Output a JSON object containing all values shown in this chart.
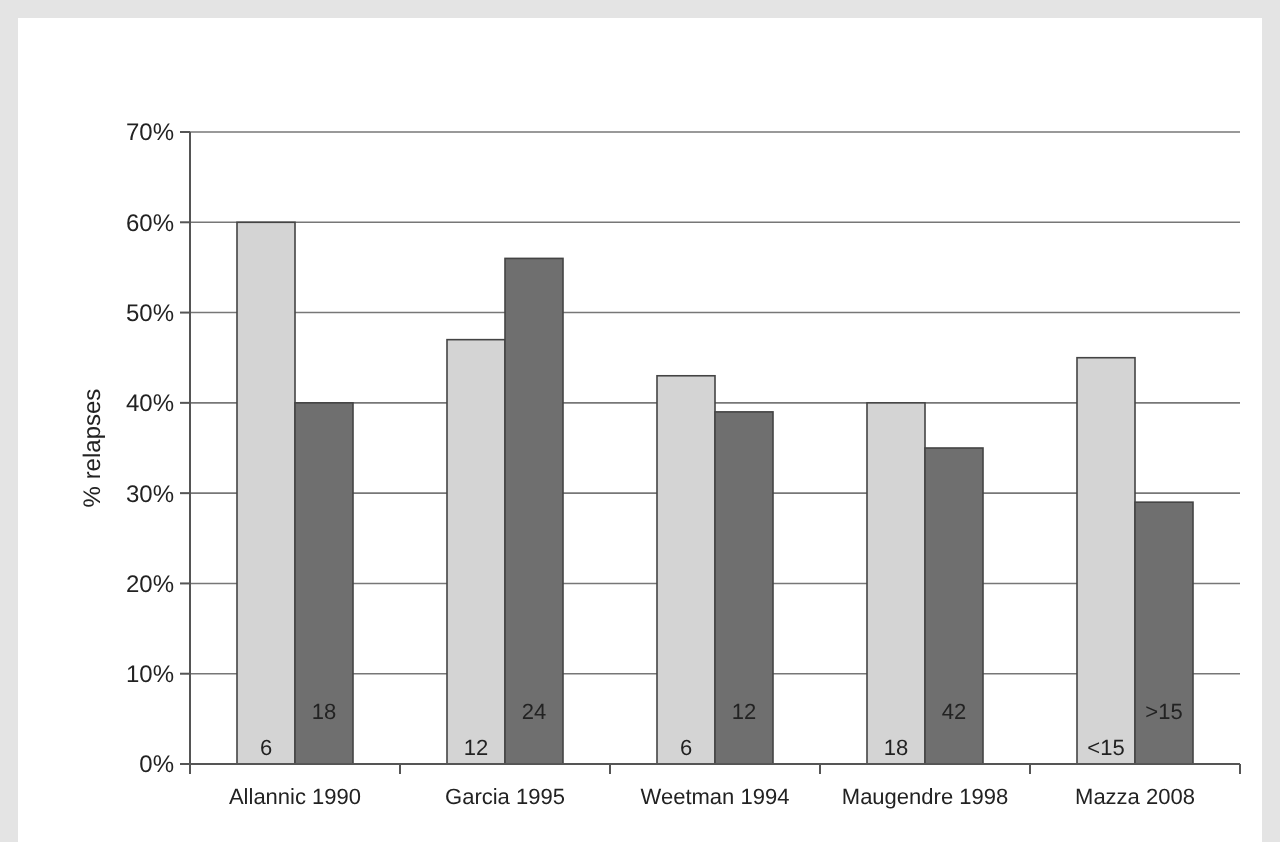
{
  "chart_data": {
    "type": "bar",
    "ylabel": "% relapses",
    "categories": [
      "Allannic 1990",
      "Garcia 1995",
      "Weetman 1994",
      "Maugendre 1998",
      "Mazza 2008"
    ],
    "series": [
      {
        "color": "#d4d4d4",
        "values": [
          60,
          47,
          43,
          40,
          45
        ]
      },
      {
        "color": "#6f6f6f",
        "values": [
          40,
          56,
          39,
          35,
          29
        ]
      }
    ],
    "ylim": [
      0,
      70
    ],
    "yticks": [
      {
        "value": 0,
        "label": "0%"
      },
      {
        "value": 10,
        "label": "10%"
      },
      {
        "value": 20,
        "label": "20%"
      },
      {
        "value": 30,
        "label": "30%"
      },
      {
        "value": 40,
        "label": "40%"
      },
      {
        "value": 50,
        "label": "50%"
      },
      {
        "value": 60,
        "label": "60%"
      },
      {
        "value": 70,
        "label": "70%"
      }
    ],
    "grid": "y",
    "annotations": [
      {
        "text": "6",
        "x": "Allannic 1990",
        "y": 1
      },
      {
        "text": "18",
        "x": "Allannic 1990",
        "y": 5
      },
      {
        "text": "12",
        "x": "Garcia 1995",
        "y": 1
      },
      {
        "text": "24",
        "x": "Garcia 1995",
        "y": 5
      },
      {
        "text": "6",
        "x": "Weetman 1994",
        "y": 1
      },
      {
        "text": "12",
        "x": "Weetman 1994",
        "y": 5
      },
      {
        "text": "18",
        "x": "Maugendre 1998",
        "y": 1
      },
      {
        "text": "42",
        "x": "Maugendre 1998",
        "y": 5
      },
      {
        "text": "<15",
        "x": "Mazza 2008",
        "y": 1
      },
      {
        "text": ">15",
        "x": "Mazza 2008",
        "y": 5
      }
    ]
  }
}
